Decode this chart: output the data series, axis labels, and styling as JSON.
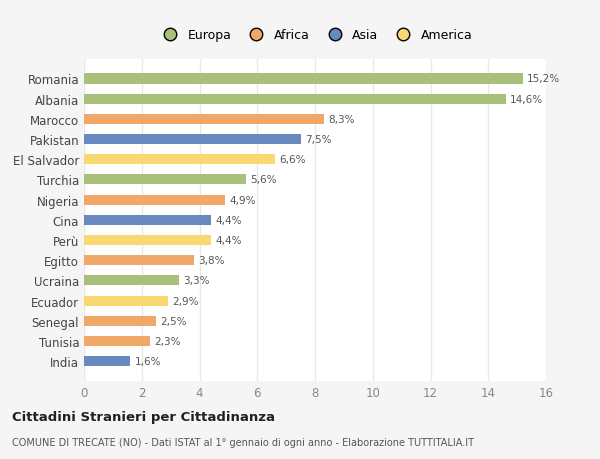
{
  "categories": [
    "Romania",
    "Albania",
    "Marocco",
    "Pakistan",
    "El Salvador",
    "Turchia",
    "Nigeria",
    "Cina",
    "Perù",
    "Egitto",
    "Ucraina",
    "Ecuador",
    "Senegal",
    "Tunisia",
    "India"
  ],
  "values": [
    15.2,
    14.6,
    8.3,
    7.5,
    6.6,
    5.6,
    4.9,
    4.4,
    4.4,
    3.8,
    3.3,
    2.9,
    2.5,
    2.3,
    1.6
  ],
  "colors": [
    "#a8c07a",
    "#a8c07a",
    "#f0a868",
    "#6888c0",
    "#f8d870",
    "#a8c07a",
    "#f0a868",
    "#6888c0",
    "#f8d870",
    "#f0a868",
    "#a8c07a",
    "#f8d870",
    "#f0a868",
    "#f0a868",
    "#6888c0"
  ],
  "legend_labels": [
    "Europa",
    "Africa",
    "Asia",
    "America"
  ],
  "legend_colors": [
    "#a8c07a",
    "#f0a868",
    "#6888c0",
    "#f8d870"
  ],
  "title": "Cittadini Stranieri per Cittadinanza",
  "subtitle": "COMUNE DI TRECATE (NO) - Dati ISTAT al 1° gennaio di ogni anno - Elaborazione TUTTITALIA.IT",
  "xlim": [
    0,
    16
  ],
  "xticks": [
    0,
    2,
    4,
    6,
    8,
    10,
    12,
    14,
    16
  ],
  "fig_background_color": "#f5f5f5",
  "plot_background_color": "#ffffff",
  "grid_color": "#e8e8e8",
  "bar_height": 0.5
}
